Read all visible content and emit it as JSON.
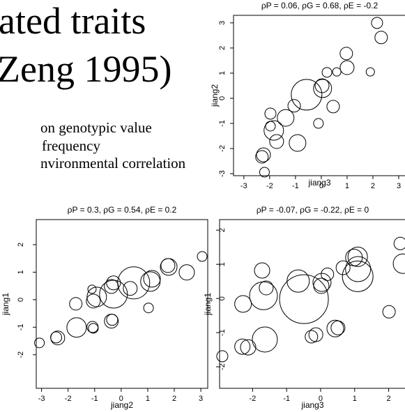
{
  "slide": {
    "title_lines": [
      "ated traits",
      "Zeng 1995)"
    ],
    "bullets": [
      "on genotypic value",
      "frequency",
      "nvironmental correlation"
    ]
  },
  "chart_data": [
    {
      "type": "scatter",
      "title": "ρP = 0.06, ρG = 0.68, ρE = -0.2",
      "x_label": "jiang3",
      "y_label": "jiang2",
      "xlim": [
        -3.4,
        3.27
      ],
      "ylim": [
        -3.08,
        3.3
      ],
      "xticks": [
        -3,
        -2,
        -1,
        0,
        1,
        2,
        3
      ],
      "yticks": [
        -3,
        -2,
        -1,
        0,
        1,
        2,
        3
      ],
      "color": "#000000",
      "x": [
        2.16,
        2.32,
        -2.2,
        0.97,
        1.0,
        1.9,
        0.22,
        0.6,
        0.05,
        0.03,
        -0.57,
        -1.05,
        0.46,
        -1.97,
        -1.38,
        -1.97,
        -1.84,
        -0.11,
        -1.73,
        -0.92,
        -2.24,
        -2.3
      ],
      "y": [
        3.0,
        2.42,
        -2.94,
        1.78,
        1.22,
        1.05,
        1.03,
        1.05,
        0.39,
        0.5,
        0.14,
        -0.3,
        -0.33,
        -0.61,
        -0.78,
        -1.11,
        -1.28,
        -1.0,
        -1.72,
        -1.78,
        -2.25,
        -2.33
      ],
      "sizes": [
        8,
        9,
        7,
        9,
        10,
        6,
        7,
        6,
        13,
        10,
        22,
        9,
        9,
        8,
        12,
        7,
        14,
        7,
        10,
        12,
        10,
        9
      ]
    },
    {
      "type": "scatter",
      "title": "ρP = 0.3, ρG = 0.54, ρE = 0.2",
      "x_label": "jiang2",
      "y_label": "jiang1",
      "xlim": [
        -3.2,
        3.26
      ],
      "ylim": [
        -3.22,
        2.91
      ],
      "xticks": [
        -3,
        -2,
        -1,
        0,
        1,
        2,
        3
      ],
      "yticks": [
        -2,
        -1,
        0,
        1,
        2
      ],
      "color": "#000000",
      "x": [
        -3.08,
        -2.39,
        -2.45,
        -1.68,
        -1.05,
        -1.08,
        -0.37,
        -0.34,
        1.03,
        -1.71,
        -1.05,
        -0.92,
        -1.1,
        -0.37,
        -0.29,
        -0.29,
        0.47,
        0.34,
        1.1,
        1.16,
        1.76,
        1.79,
        2.47,
        3.05
      ],
      "y": [
        -1.57,
        -1.39,
        -1.37,
        -1.01,
        -1.04,
        -0.99,
        -0.78,
        -0.73,
        -0.3,
        -0.15,
        -0.05,
        0.1,
        0.38,
        0.48,
        0.61,
        0.2,
        0.61,
        0.41,
        0.66,
        0.76,
        1.24,
        1.19,
        0.99,
        1.57
      ],
      "sizes": [
        7,
        10,
        8,
        14,
        7,
        8,
        10,
        8,
        7,
        9,
        10,
        14,
        6,
        10,
        10,
        20,
        23,
        10,
        14,
        12,
        10,
        12,
        11,
        7
      ]
    },
    {
      "type": "scatter",
      "title": "ρP = -0.07, ρG = -0.22, ρE = 0",
      "x_label": "jiang3",
      "y_label": "jiang1",
      "xlim": [
        -2.97,
        2.5
      ],
      "ylim": [
        -2.63,
        2.31
      ],
      "xticks": [
        -2,
        -1,
        0,
        1,
        2
      ],
      "yticks": [
        -2,
        -1,
        0,
        1,
        2
      ],
      "color": "#000000",
      "x": [
        -2.89,
        -2.3,
        -2.13,
        -1.64,
        -0.27,
        -0.14,
        0.43,
        0.51,
        2.01,
        -2.28,
        -1.6,
        -1.68,
        -0.66,
        0.04,
        0.02,
        -0.49,
        0.2,
        0.66,
        0.98,
        1.09,
        1.09,
        1.1,
        2.34,
        2.42,
        -1.72
      ],
      "y": [
        -1.69,
        -1.41,
        -1.43,
        -1.2,
        -1.12,
        -1.06,
        -0.88,
        -0.86,
        -0.39,
        -0.16,
        0.31,
        0.08,
        0.51,
        0.47,
        0.37,
        -0.02,
        0.71,
        0.9,
        1.2,
        1.22,
        0.65,
        0.86,
        1.61,
        1.02,
        0.82
      ],
      "sizes": [
        8,
        11,
        11,
        18,
        9,
        10,
        12,
        10,
        9,
        12,
        10,
        20,
        16,
        13,
        11,
        35,
        9,
        10,
        12,
        14,
        22,
        18,
        9,
        14,
        11
      ]
    }
  ]
}
